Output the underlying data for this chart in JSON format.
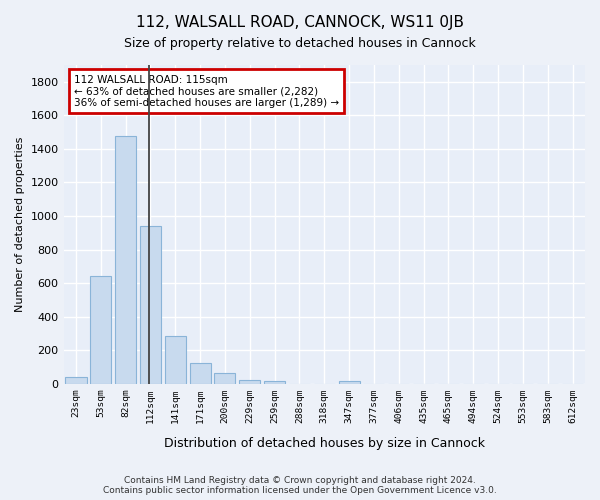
{
  "title": "112, WALSALL ROAD, CANNOCK, WS11 0JB",
  "subtitle": "Size of property relative to detached houses in Cannock",
  "xlabel": "Distribution of detached houses by size in Cannock",
  "ylabel": "Number of detached properties",
  "bar_color": "#c8daee",
  "bar_edge_color": "#8ab4d8",
  "background_color": "#e8eef8",
  "grid_color": "#ffffff",
  "fig_bg_color": "#edf1f8",
  "categories": [
    "23sqm",
    "53sqm",
    "82sqm",
    "112sqm",
    "141sqm",
    "171sqm",
    "200sqm",
    "229sqm",
    "259sqm",
    "288sqm",
    "318sqm",
    "347sqm",
    "377sqm",
    "406sqm",
    "435sqm",
    "465sqm",
    "494sqm",
    "524sqm",
    "553sqm",
    "583sqm",
    "612sqm"
  ],
  "values": [
    40,
    645,
    1475,
    940,
    285,
    125,
    65,
    25,
    15,
    0,
    0,
    15,
    0,
    0,
    0,
    0,
    0,
    0,
    0,
    0,
    0
  ],
  "ylim": [
    0,
    1900
  ],
  "yticks": [
    0,
    200,
    400,
    600,
    800,
    1000,
    1200,
    1400,
    1600,
    1800
  ],
  "vline_pos": 2.925,
  "annotation_lines": [
    "112 WALSALL ROAD: 115sqm",
    "← 63% of detached houses are smaller (2,282)",
    "36% of semi-detached houses are larger (1,289) →"
  ],
  "annotation_border_color": "#cc0000",
  "footer_line1": "Contains HM Land Registry data © Crown copyright and database right 2024.",
  "footer_line2": "Contains public sector information licensed under the Open Government Licence v3.0."
}
